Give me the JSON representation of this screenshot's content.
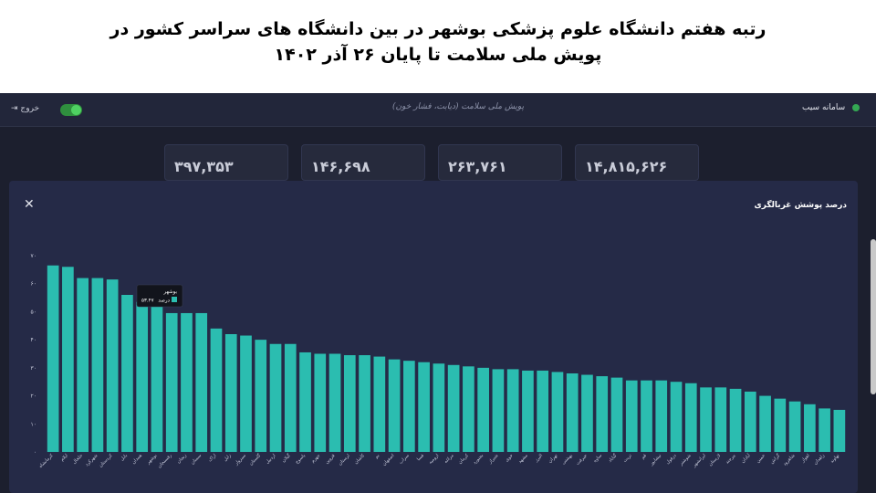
{
  "headline": {
    "line1": "رتبه هفتم  دانشگاه علوم پزشکی بوشهر در بین دانشگاه های سراسر کشور  در",
    "line2": "پویش ملی سلامت تا پایان ۲۶ آذر ۱۴۰۲"
  },
  "app": {
    "brand": "سامانه سیب",
    "banner": "پویش ملی سلامت (دیابت، فشار خون)",
    "logout_label": "خروج",
    "stats": [
      "۳۹۷,۳۵۳",
      "۱۴۶,۶۹۸",
      "۲۶۳,۷۶۱",
      "۱۴,۸۱۵,۶۲۶"
    ],
    "colors": {
      "bar": "#2bbdb0",
      "background": "#1c1f2e",
      "panel": "#252a47"
    }
  },
  "modal": {
    "title": "درصد پوشش غربالگری",
    "close_icon": "close-icon"
  },
  "tooltip": {
    "name": "بوشهر",
    "label": "درصد",
    "value": "۵۳.۴۷"
  },
  "chart_data": {
    "type": "bar",
    "title": "درصد پوشش غربالگری",
    "ylim": [
      0,
      70
    ],
    "yticks": [
      "۰",
      "۱۰",
      "۲۰",
      "۳۰",
      "۴۰",
      "۵۰",
      "۶۰",
      "۷۰"
    ],
    "grid": false,
    "categories": [
      "کرمانشاه",
      "ایلام",
      "خلخال",
      "شهرکرد",
      "کردستان",
      "بابل",
      "همدان",
      "بوشهر",
      "رفسنجان",
      "زنجان",
      "سمنان",
      "اراک",
      "زابل",
      "سبزوار",
      "گلستان",
      "اردبیل",
      "گیلان",
      "یاسوج",
      "جهرم",
      "قزوین",
      "لرستان",
      "کاشان",
      "بم",
      "اصفهان",
      "سراب",
      "فسا",
      "ارومیه",
      "مراغه",
      "کرمان",
      "بجنورد",
      "شیراز",
      "خوی",
      "مشهد",
      "البرز",
      "تهران",
      "بهشتی",
      "جیرفت",
      "ساوه",
      "گناباد",
      "تربت",
      "قم",
      "نیشابور",
      "دزفول",
      "شوشتر",
      "ایرانشهر",
      "لارستان",
      "بیرجند",
      "آبادان",
      "خمین",
      "گراش",
      "شاهرود",
      "اهواز",
      "زاهدان",
      "نهاوند"
    ],
    "values": [
      66.5,
      66,
      62,
      62,
      61.5,
      56,
      53.5,
      53.5,
      49.5,
      49.5,
      49.5,
      44,
      42,
      41.5,
      40,
      38.5,
      38.5,
      35.5,
      35,
      35,
      34.5,
      34.5,
      34,
      33,
      32.5,
      32,
      31.5,
      31,
      30.5,
      30,
      29.5,
      29.5,
      29,
      29,
      28.5,
      28,
      27.5,
      27,
      26.5,
      25.5,
      25.5,
      25.5,
      25,
      24.5,
      23,
      23,
      22.5,
      21.5,
      20,
      19,
      18,
      17,
      15.5,
      15
    ]
  }
}
